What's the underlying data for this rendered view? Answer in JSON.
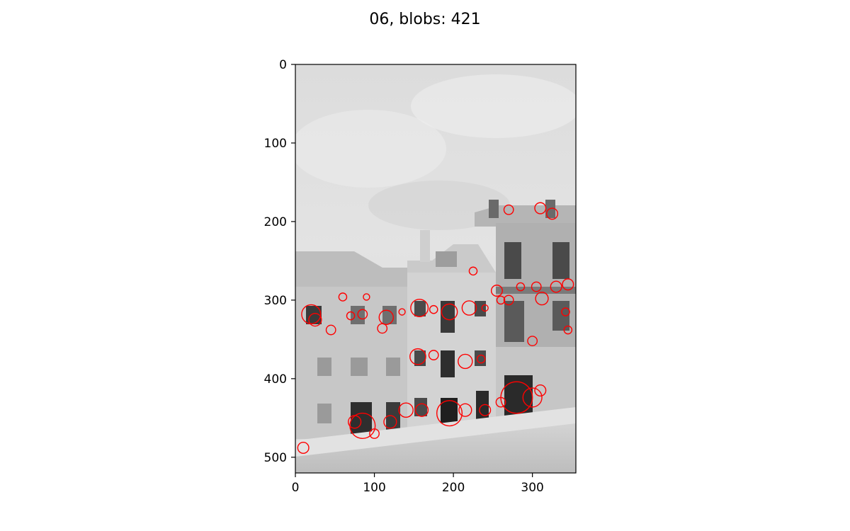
{
  "figure": {
    "title": "06, blobs: 421"
  },
  "chart_data": {
    "type": "scatter",
    "title": "06, blobs: 421",
    "xlabel": "",
    "ylabel": "",
    "xlim": [
      0,
      355
    ],
    "ylim": [
      520,
      0
    ],
    "x_ticks": [
      "0",
      "100",
      "200",
      "300"
    ],
    "y_ticks": [
      "0",
      "100",
      "200",
      "300",
      "400",
      "500"
    ],
    "grid": false,
    "marker": "circle-outline",
    "marker_color": "#ff0000",
    "background_image": "grayscale photograph of building facades under cloudy sky",
    "blob_count_printed": 421,
    "series": [
      {
        "values": [
          {
            "x": 20,
            "y": 318,
            "r": 12
          },
          {
            "x": 25,
            "y": 325,
            "r": 8
          },
          {
            "x": 70,
            "y": 320,
            "r": 5
          },
          {
            "x": 85,
            "y": 318,
            "r": 6
          },
          {
            "x": 115,
            "y": 322,
            "r": 9
          },
          {
            "x": 135,
            "y": 315,
            "r": 4
          },
          {
            "x": 157,
            "y": 310,
            "r": 11
          },
          {
            "x": 175,
            "y": 312,
            "r": 5
          },
          {
            "x": 195,
            "y": 315,
            "r": 10
          },
          {
            "x": 220,
            "y": 310,
            "r": 9
          },
          {
            "x": 240,
            "y": 310,
            "r": 4
          },
          {
            "x": 155,
            "y": 372,
            "r": 10
          },
          {
            "x": 175,
            "y": 370,
            "r": 6
          },
          {
            "x": 215,
            "y": 378,
            "r": 9
          },
          {
            "x": 235,
            "y": 375,
            "r": 5
          },
          {
            "x": 85,
            "y": 460,
            "r": 16
          },
          {
            "x": 75,
            "y": 455,
            "r": 8
          },
          {
            "x": 100,
            "y": 470,
            "r": 6
          },
          {
            "x": 120,
            "y": 455,
            "r": 8
          },
          {
            "x": 140,
            "y": 440,
            "r": 9
          },
          {
            "x": 160,
            "y": 440,
            "r": 8
          },
          {
            "x": 195,
            "y": 444,
            "r": 16
          },
          {
            "x": 215,
            "y": 440,
            "r": 8
          },
          {
            "x": 240,
            "y": 440,
            "r": 7
          },
          {
            "x": 260,
            "y": 430,
            "r": 6
          },
          {
            "x": 280,
            "y": 424,
            "r": 20
          },
          {
            "x": 300,
            "y": 424,
            "r": 12
          },
          {
            "x": 310,
            "y": 415,
            "r": 7
          },
          {
            "x": 10,
            "y": 488,
            "r": 7
          },
          {
            "x": 270,
            "y": 185,
            "r": 6
          },
          {
            "x": 310,
            "y": 183,
            "r": 7
          },
          {
            "x": 325,
            "y": 190,
            "r": 7
          },
          {
            "x": 255,
            "y": 288,
            "r": 7
          },
          {
            "x": 285,
            "y": 283,
            "r": 5
          },
          {
            "x": 305,
            "y": 283,
            "r": 6
          },
          {
            "x": 330,
            "y": 283,
            "r": 7
          },
          {
            "x": 345,
            "y": 280,
            "r": 7
          },
          {
            "x": 312,
            "y": 298,
            "r": 8
          },
          {
            "x": 342,
            "y": 315,
            "r": 5
          },
          {
            "x": 345,
            "y": 338,
            "r": 5
          },
          {
            "x": 300,
            "y": 352,
            "r": 6
          },
          {
            "x": 270,
            "y": 300,
            "r": 6
          },
          {
            "x": 260,
            "y": 300,
            "r": 5
          },
          {
            "x": 225,
            "y": 263,
            "r": 5
          },
          {
            "x": 45,
            "y": 338,
            "r": 6
          },
          {
            "x": 110,
            "y": 336,
            "r": 6
          },
          {
            "x": 60,
            "y": 296,
            "r": 5
          },
          {
            "x": 90,
            "y": 296,
            "r": 4
          }
        ]
      }
    ]
  }
}
